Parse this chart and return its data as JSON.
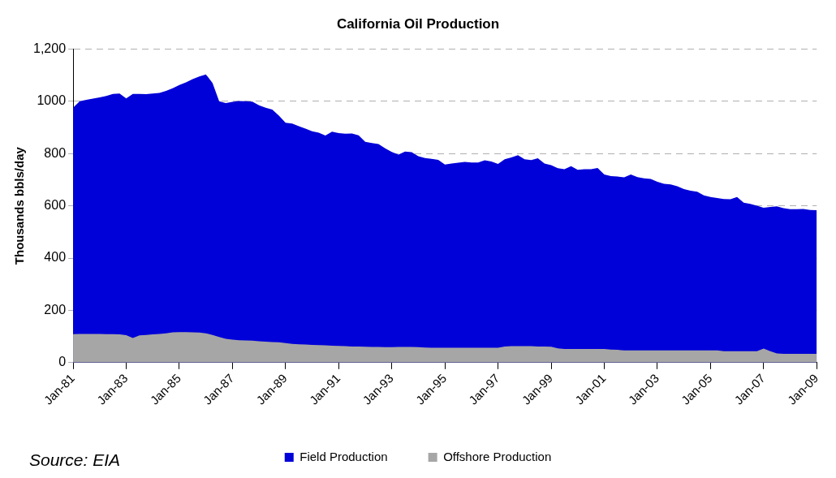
{
  "chart_data": {
    "type": "area",
    "title": "California Oil Production",
    "ylabel": "Thousands bbls/day",
    "categories": [
      "Jan-81",
      null,
      null,
      null,
      null,
      null,
      null,
      null,
      "Jan-83",
      null,
      null,
      null,
      null,
      null,
      null,
      null,
      "Jan-85",
      null,
      null,
      null,
      null,
      null,
      null,
      null,
      "Jan-87",
      null,
      null,
      null,
      null,
      null,
      null,
      null,
      "Jan-89",
      null,
      null,
      null,
      null,
      null,
      null,
      null,
      "Jan-91",
      null,
      null,
      null,
      null,
      null,
      null,
      null,
      "Jan-93",
      null,
      null,
      null,
      null,
      null,
      null,
      null,
      "Jan-95",
      null,
      null,
      null,
      null,
      null,
      null,
      null,
      "Jan-97",
      null,
      null,
      null,
      null,
      null,
      null,
      null,
      "Jan-99",
      null,
      null,
      null,
      null,
      null,
      null,
      null,
      "Jan-01",
      null,
      null,
      null,
      null,
      null,
      null,
      null,
      "Jan-03",
      null,
      null,
      null,
      null,
      null,
      null,
      null,
      "Jan-05",
      null,
      null,
      null,
      null,
      null,
      null,
      null,
      "Jan-07",
      null,
      null,
      null,
      null,
      null,
      null,
      null,
      "Jan-09"
    ],
    "series": [
      {
        "name": "Field Production",
        "color": "#0000d8",
        "values": [
          975,
          1000,
          1006,
          1010,
          1015,
          1020,
          1028,
          1030,
          1011,
          1028,
          1028,
          1027,
          1030,
          1032,
          1040,
          1050,
          1062,
          1072,
          1085,
          1095,
          1103,
          1070,
          1000,
          993,
          998,
          1001,
          1000,
          999,
          985,
          975,
          968,
          945,
          918,
          915,
          905,
          895,
          885,
          880,
          869,
          884,
          878,
          876,
          877,
          870,
          845,
          840,
          836,
          820,
          806,
          796,
          808,
          805,
          790,
          783,
          780,
          776,
          758,
          762,
          765,
          768,
          766,
          766,
          774,
          770,
          760,
          778,
          785,
          794,
          778,
          775,
          782,
          762,
          756,
          744,
          740,
          752,
          738,
          740,
          740,
          745,
          720,
          714,
          712,
          709,
          720,
          710,
          705,
          703,
          692,
          684,
          682,
          675,
          664,
          658,
          654,
          640,
          634,
          630,
          626,
          625,
          634,
          612,
          607,
          600,
          593,
          596,
          598,
          591,
          587,
          587,
          588,
          584,
          583
        ]
      },
      {
        "name": "Offshore Production",
        "color": "#a6a6a6",
        "values": [
          109,
          110,
          110,
          110,
          110,
          109,
          109,
          108,
          105,
          94,
          104,
          106,
          108,
          110,
          112,
          116,
          117,
          117,
          116,
          115,
          112,
          106,
          98,
          91,
          88,
          86,
          85,
          84,
          82,
          80,
          79,
          78,
          75,
          72,
          70,
          69,
          68,
          67,
          66,
          65,
          64,
          63,
          62,
          62,
          61,
          60,
          60,
          59,
          59,
          60,
          60,
          60,
          59,
          58,
          57,
          57,
          57,
          57,
          57,
          57,
          57,
          57,
          57,
          57,
          57,
          62,
          63,
          63,
          63,
          63,
          62,
          62,
          61,
          55,
          52,
          52,
          52,
          52,
          52,
          52,
          52,
          50,
          49,
          47,
          47,
          47,
          47,
          47,
          47,
          47,
          47,
          47,
          47,
          47,
          47,
          47,
          47,
          47,
          44,
          44,
          44,
          44,
          44,
          44,
          54,
          44,
          35,
          34,
          34,
          34,
          34,
          34,
          34
        ]
      }
    ],
    "ylim": [
      0,
      1200
    ],
    "yticks": [
      0,
      200,
      400,
      600,
      800,
      1000,
      {
        "value": 1200,
        "label": "1,200"
      }
    ],
    "grid": "y",
    "legend": "bottom",
    "marker": "none",
    "annotations": [
      "Source: EIA"
    ]
  }
}
